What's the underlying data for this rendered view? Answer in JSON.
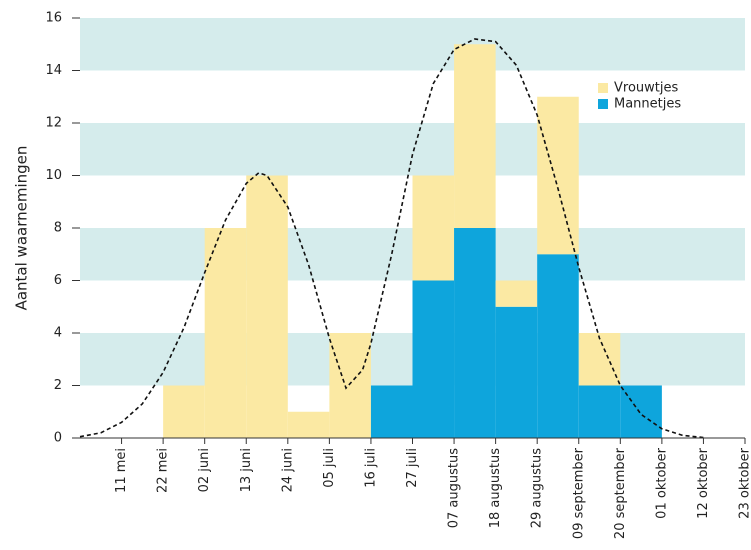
{
  "chart_data": {
    "type": "stacked_histogram",
    "y_label": "Aantal waarnemingen",
    "bins": [
      null,
      "11 mei",
      "22 mei",
      "02 juni",
      "13 juni",
      "24 juni",
      "05 juli",
      "16 juli",
      "27 juli",
      "07 augustus",
      "18 augustus",
      "29 augustus",
      "09 september",
      "20 september",
      "01 oktober",
      "12 oktober",
      "23 oktober"
    ],
    "series": [
      {
        "name": "Mannetjes",
        "color": "#0ea5dc",
        "values": [
          0,
          0,
          0,
          0,
          0,
          0,
          0,
          2,
          6,
          8,
          5,
          7,
          2,
          2,
          0,
          0
        ]
      },
      {
        "name": "Vrouwtjes",
        "color": "#fbe9a3",
        "values": [
          0,
          0,
          2,
          8,
          10,
          1,
          4,
          0,
          4,
          7,
          1,
          6,
          2,
          0,
          0,
          0
        ]
      }
    ],
    "fit": {
      "x": [
        0,
        0.5,
        1,
        1.5,
        2,
        2.5,
        3,
        3.5,
        4,
        4.3,
        4.5,
        5,
        5.5,
        6,
        6.4,
        6.8,
        7,
        7.5,
        8,
        8.5,
        9,
        9.5,
        10,
        10.5,
        11,
        11.5,
        12,
        12.5,
        13,
        13.5,
        14,
        14.5,
        15
      ],
      "values": [
        0.05,
        0.2,
        0.6,
        1.3,
        2.5,
        4.2,
        6.3,
        8.3,
        9.7,
        10.1,
        10.0,
        8.8,
        6.6,
        3.8,
        1.9,
        2.6,
        3.6,
        7.0,
        10.8,
        13.5,
        14.8,
        15.2,
        15.1,
        14.2,
        12.3,
        9.5,
        6.5,
        3.8,
        2.0,
        0.9,
        0.35,
        0.1,
        0.02
      ],
      "color": "#111111"
    },
    "ylim": [
      0,
      16
    ],
    "yticks": [
      0,
      2,
      4,
      6,
      8,
      10,
      12,
      14,
      16
    ],
    "band_color": "#d5ecec",
    "legend": "upper-right"
  }
}
